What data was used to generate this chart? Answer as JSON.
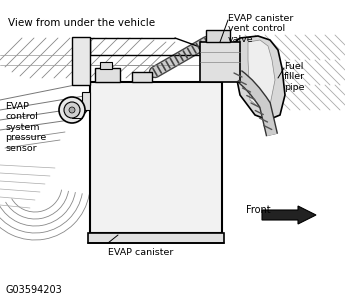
{
  "bg_color": "#ffffff",
  "lc": "#000000",
  "title": "View from under the vehicle",
  "label_evap_vent": "EVAP canister\nvent control\nvalve",
  "label_fuel": "Fuel\nfiller\npipe",
  "label_sensor": "EVAP\ncontrol\nsystem\npressure\nsensor",
  "label_canister": "EVAP canister",
  "label_front": "Front",
  "code": "G03594203",
  "figsize": [
    3.45,
    3.0
  ],
  "dpi": 100
}
